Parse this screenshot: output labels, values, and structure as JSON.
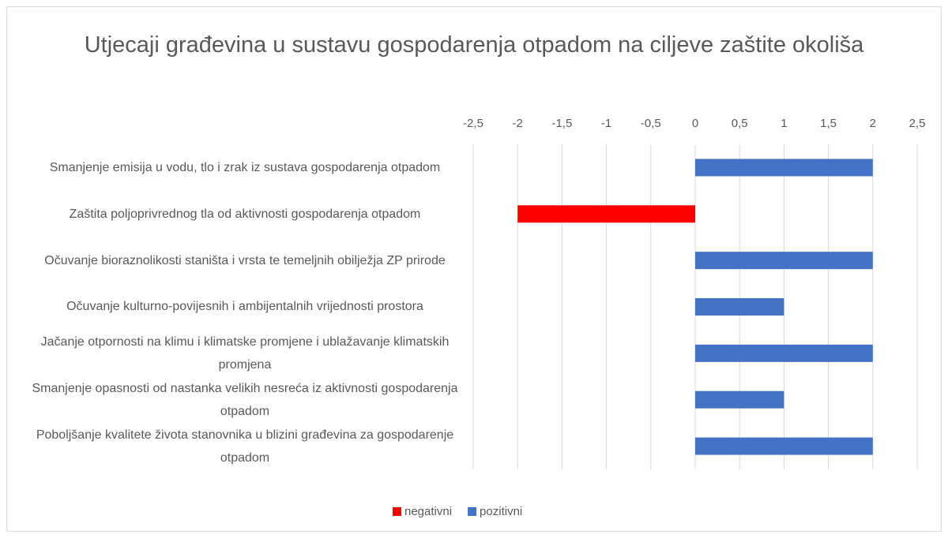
{
  "chart_data": {
    "type": "hbar",
    "title": "Utjecaji građevina u sustavu gospodarenja otpadom na ciljeve zaštite okoliša",
    "categories": [
      "Smanjenje emisija u vodu, tlo i zrak iz sustava gospodarenja otpadom",
      "Zaštita poljoprivrednog tla od aktivnosti gospodarenja otpadom",
      "Očuvanje bioraznolikosti staništa i vrsta te temeljnih obilježja ZP prirode",
      "Očuvanje kulturno-povijesnih i ambijentalnih vrijednosti prostora",
      "Jačanje otpornosti na klimu i klimatske promjene i ublažavanje klimatskih promjena",
      "Smanjenje opasnosti od nastanka velikih nesreća iz aktivnosti gospodarenja otpadom",
      "Poboljšanje kvalitete života stanovnika u blizini građevina za gospodarenje otpadom"
    ],
    "series": [
      {
        "name": "negativni",
        "color": "#ff0000",
        "values": [
          null,
          -2,
          null,
          null,
          null,
          null,
          null
        ]
      },
      {
        "name": "pozitivni",
        "color": "#4472c4",
        "values": [
          2,
          null,
          2,
          1,
          2,
          1,
          2
        ]
      }
    ],
    "xlim": [
      -2.5,
      2.5
    ],
    "xticks": [
      {
        "value": -2.5,
        "label": "-2,5"
      },
      -2,
      {
        "value": -1.5,
        "label": "-1,5"
      },
      -1,
      {
        "value": -0.5,
        "label": "-0,5"
      },
      0,
      {
        "value": 0.5,
        "label": "0,5"
      },
      1,
      {
        "value": 1.5,
        "label": "1,5"
      },
      2,
      {
        "value": 2.5,
        "label": "2,5"
      }
    ],
    "grid": true,
    "legend": "bottom"
  }
}
